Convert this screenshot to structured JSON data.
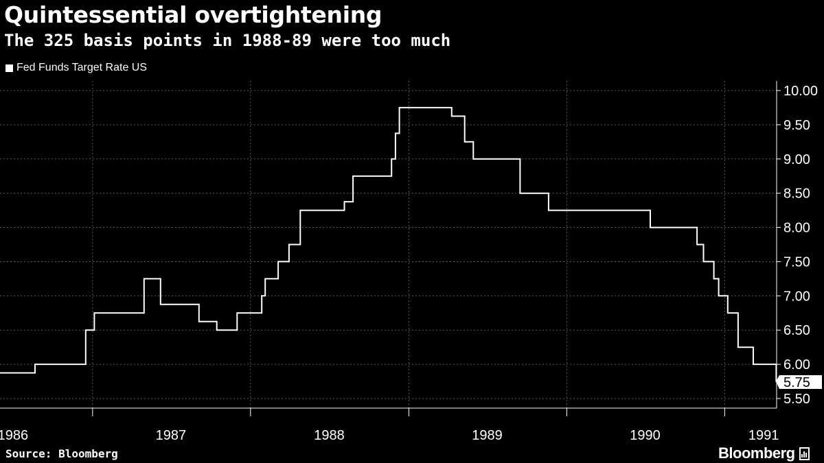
{
  "header": {
    "title": "Quintessential overtightening",
    "subtitle": "The 325 basis points in 1988-89 were too much"
  },
  "footer": {
    "source": "Source: Bloomberg",
    "brand": "Bloomberg",
    "brand_icon": "bar-chart-icon"
  },
  "colors": {
    "background": "#000000",
    "line": "#ffffff",
    "grid": "#5a5a5a"
  },
  "chart_data": {
    "type": "line",
    "step": true,
    "title": "Quintessential overtightening",
    "subtitle": "The 325 basis points in 1988-89 were too much",
    "xlabel": "",
    "ylabel": "",
    "legend": {
      "entries": [
        "Fed Funds Target Rate US"
      ],
      "placement": "top-left"
    },
    "grid": true,
    "x_range": [
      "1986-06-01",
      "1991-05-01"
    ],
    "ylim": [
      5.5,
      10.0
    ],
    "y_ticks": [
      "5.50",
      "6.00",
      "6.50",
      "7.00",
      "7.50",
      "8.00",
      "8.50",
      "9.00",
      "9.50",
      "10.00"
    ],
    "x_tick_labels": [
      {
        "label": "1986",
        "date": "1986-07-01"
      },
      {
        "label": "1987",
        "date": "1987-07-01"
      },
      {
        "label": "1988",
        "date": "1988-07-01"
      },
      {
        "label": "1989",
        "date": "1989-07-01"
      },
      {
        "label": "1990",
        "date": "1990-07-01"
      },
      {
        "label": "1991",
        "date": "1991-04-01"
      }
    ],
    "last_value_label": "5.75",
    "series": [
      {
        "name": "Fed Funds Target Rate US",
        "points": [
          [
            "1986-06-01",
            5.875
          ],
          [
            "1986-08-21",
            6.0
          ],
          [
            "1986-12-16",
            6.5
          ],
          [
            "1987-01-05",
            6.75
          ],
          [
            "1987-04-30",
            7.25
          ],
          [
            "1987-06-07",
            6.875
          ],
          [
            "1987-09-04",
            6.625
          ],
          [
            "1987-10-15",
            6.5
          ],
          [
            "1987-12-01",
            6.75
          ],
          [
            "1988-01-27",
            7.0
          ],
          [
            "1988-02-04",
            7.25
          ],
          [
            "1988-03-05",
            7.5
          ],
          [
            "1988-03-30",
            7.75
          ],
          [
            "1988-04-25",
            8.25
          ],
          [
            "1988-08-05",
            8.375
          ],
          [
            "1988-08-25",
            8.75
          ],
          [
            "1988-11-22",
            9.0
          ],
          [
            "1988-12-01",
            9.375
          ],
          [
            "1988-12-10",
            9.75
          ],
          [
            "1989-04-10",
            9.625
          ],
          [
            "1989-05-10",
            9.25
          ],
          [
            "1989-05-30",
            9.0
          ],
          [
            "1989-09-15",
            8.5
          ],
          [
            "1989-11-20",
            8.25
          ],
          [
            "1990-07-13",
            8.0
          ],
          [
            "1990-10-29",
            7.75
          ],
          [
            "1990-11-13",
            7.5
          ],
          [
            "1990-12-07",
            7.25
          ],
          [
            "1990-12-18",
            7.0
          ],
          [
            "1991-01-08",
            6.75
          ],
          [
            "1991-02-01",
            6.25
          ],
          [
            "1991-03-08",
            6.0
          ],
          [
            "1991-04-30",
            5.75
          ],
          [
            "1991-05-20",
            5.75
          ]
        ]
      }
    ]
  }
}
